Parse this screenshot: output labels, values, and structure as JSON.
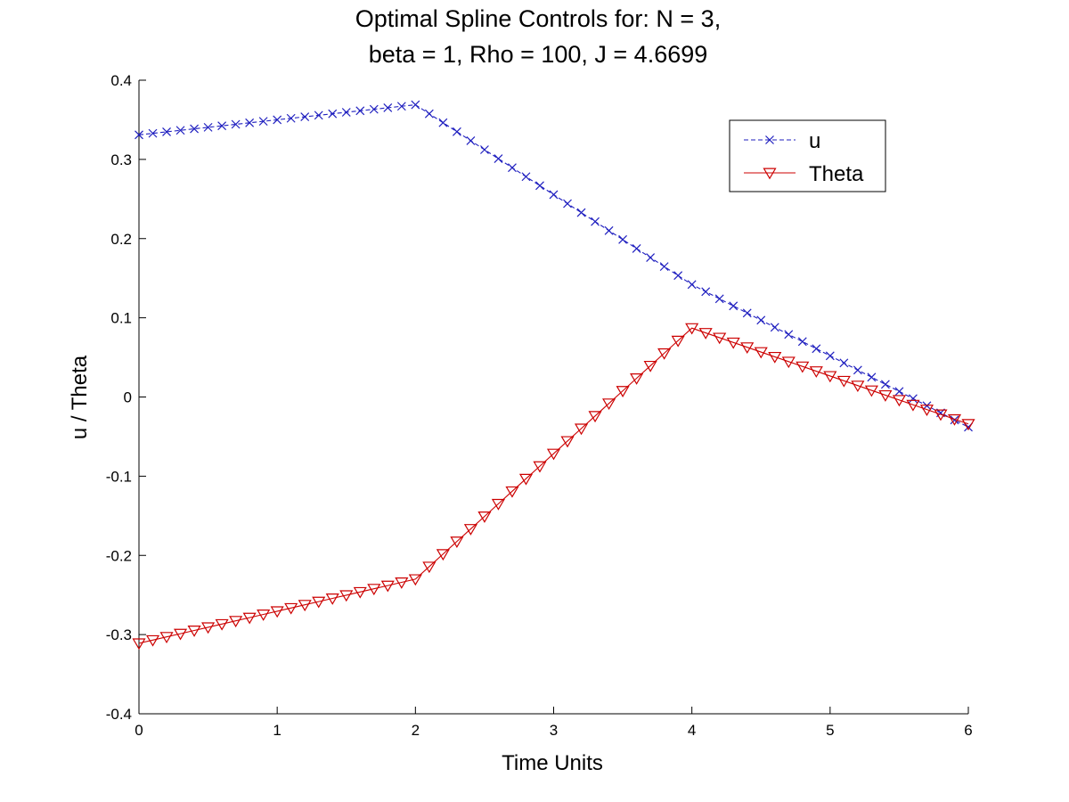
{
  "chart_data": {
    "type": "line",
    "title": [
      "Optimal Spline Controls for:  N = 3,",
      "beta = 1, Rho = 100, J = 4.6699"
    ],
    "xlabel": "Time Units",
    "ylabel": "u / Theta",
    "xlim": [
      0,
      6
    ],
    "ylim": [
      -0.4,
      0.4
    ],
    "x_ticks": [
      "0",
      "1",
      "2",
      "3",
      "4",
      "5",
      "6"
    ],
    "y_ticks": [
      "-0.4",
      "-0.3",
      "-0.2",
      "-0.1",
      "0",
      "0.1",
      "0.2",
      "0.3",
      "0.4"
    ],
    "grid": false,
    "legend_position": "top-right",
    "series": [
      {
        "name": "u",
        "color": "#1f1fbf",
        "line_style": "dashed",
        "marker": "x",
        "knots": [
          [
            0,
            0.331
          ],
          [
            2,
            0.369
          ],
          [
            4,
            0.142
          ],
          [
            6,
            -0.038
          ]
        ]
      },
      {
        "name": "Theta",
        "color": "#cc0000",
        "line_style": "solid",
        "marker": "triangle-down",
        "knots": [
          [
            0,
            -0.311
          ],
          [
            2,
            -0.23
          ],
          [
            4,
            0.087
          ],
          [
            6,
            -0.034
          ]
        ]
      }
    ],
    "samples_per_unit": 10
  }
}
